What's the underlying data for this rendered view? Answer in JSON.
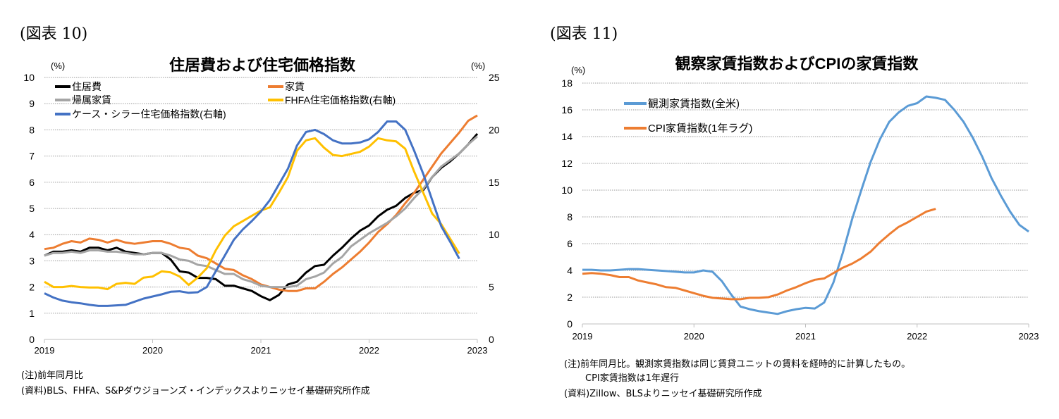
{
  "figures": [
    {
      "label": "(図表 10)"
    },
    {
      "label": "(図表 11)"
    }
  ],
  "notes_left": {
    "note": "(注)前年同月比",
    "source": "(資料)BLS、FHFA、S&Pダウジョーンズ・インデックスよりニッセイ基礎研究所作成"
  },
  "notes_right": {
    "note": "(注)前年同月比。観測家賃指数は同じ賃貸ユニットの賃料を経時的に計算したもの。",
    "note2": "CPI家賃指数は1年遅行",
    "source": "(資料)Zillow、BLSよりニッセイ基礎研究所作成"
  },
  "chart_data": [
    {
      "type": "line",
      "title": "住居費および住宅価格指数",
      "ylabel": "(%)",
      "y2label": "(%)",
      "x_start": "2019-01",
      "x_tick_labels": [
        "2019",
        "2020",
        "2021",
        "2022",
        "2023"
      ],
      "ylim": [
        0,
        10
      ],
      "y_ticks": [
        0,
        1,
        2,
        3,
        4,
        5,
        6,
        7,
        8,
        9,
        10
      ],
      "y2lim": [
        0,
        25
      ],
      "y2_ticks": [
        0,
        5,
        10,
        15,
        20,
        25
      ],
      "grid": true,
      "legend": "top-left",
      "series": [
        {
          "name": "住居費",
          "axis": "left",
          "color": "#000000",
          "values": [
            3.2,
            3.35,
            3.35,
            3.4,
            3.35,
            3.5,
            3.5,
            3.4,
            3.5,
            3.35,
            3.3,
            3.25,
            3.3,
            3.3,
            3.05,
            2.6,
            2.55,
            2.35,
            2.35,
            2.3,
            2.05,
            2.05,
            1.95,
            1.85,
            1.65,
            1.5,
            1.7,
            2.1,
            2.2,
            2.55,
            2.8,
            2.85,
            3.2,
            3.5,
            3.85,
            4.15,
            4.35,
            4.7,
            4.95,
            5.1,
            5.4,
            5.6,
            5.7,
            6.2,
            6.55,
            6.8,
            7.1,
            7.45,
            7.85
          ]
        },
        {
          "name": "家賃",
          "axis": "left",
          "color": "#ED7D31",
          "values": [
            3.45,
            3.5,
            3.65,
            3.75,
            3.7,
            3.85,
            3.8,
            3.7,
            3.8,
            3.7,
            3.65,
            3.7,
            3.75,
            3.75,
            3.65,
            3.5,
            3.45,
            3.2,
            3.1,
            2.9,
            2.7,
            2.65,
            2.45,
            2.3,
            2.1,
            2.0,
            1.9,
            1.85,
            1.85,
            1.95,
            1.95,
            2.2,
            2.5,
            2.75,
            3.05,
            3.35,
            3.7,
            4.1,
            4.4,
            4.75,
            5.2,
            5.6,
            6.1,
            6.6,
            7.1,
            7.5,
            7.9,
            8.35,
            8.55
          ]
        },
        {
          "name": "帰属家賃",
          "axis": "left",
          "color": "#A5A5A5",
          "values": [
            3.2,
            3.3,
            3.3,
            3.35,
            3.3,
            3.4,
            3.4,
            3.35,
            3.35,
            3.3,
            3.25,
            3.25,
            3.3,
            3.3,
            3.2,
            3.05,
            3.0,
            2.85,
            2.8,
            2.65,
            2.5,
            2.5,
            2.3,
            2.2,
            2.05,
            2.0,
            2.0,
            2.0,
            2.05,
            2.3,
            2.4,
            2.55,
            2.9,
            3.15,
            3.55,
            3.8,
            4.05,
            4.25,
            4.45,
            4.7,
            5.0,
            5.4,
            5.75,
            6.2,
            6.6,
            6.85,
            7.1,
            7.45,
            7.75
          ]
        },
        {
          "name": "FHFA住宅価格指数(右軸)",
          "axis": "right",
          "color": "#FFC000",
          "values": [
            5.5,
            5.0,
            5.0,
            5.1,
            5.0,
            4.95,
            4.95,
            4.8,
            5.3,
            5.4,
            5.3,
            5.9,
            6.0,
            6.5,
            6.4,
            6.0,
            5.2,
            5.9,
            6.8,
            8.5,
            9.9,
            10.8,
            11.3,
            11.8,
            12.3,
            12.6,
            14.0,
            15.5,
            18.0,
            19.0,
            19.2,
            18.3,
            17.6,
            17.5,
            17.7,
            17.9,
            18.4,
            19.2,
            19.0,
            18.9,
            18.2,
            16.0,
            14.0,
            12.0,
            11.0,
            9.6,
            8.2
          ]
        },
        {
          "name": "ケース・シラー住宅価格指数(右軸)",
          "axis": "right",
          "color": "#4472C4",
          "values": [
            4.4,
            4.0,
            3.7,
            3.55,
            3.45,
            3.3,
            3.2,
            3.2,
            3.25,
            3.3,
            3.6,
            3.9,
            4.1,
            4.3,
            4.55,
            4.6,
            4.45,
            4.5,
            5.0,
            6.5,
            8.0,
            9.5,
            10.5,
            11.3,
            12.2,
            13.3,
            14.8,
            16.3,
            18.5,
            19.8,
            20.0,
            19.6,
            19.0,
            18.7,
            18.7,
            18.8,
            19.1,
            19.8,
            20.8,
            20.8,
            20.0,
            18.0,
            15.8,
            13.3,
            10.8,
            9.3,
            7.7
          ]
        }
      ]
    },
    {
      "type": "line",
      "title": "観察家賃指数およびCPIの家賃指数",
      "ylabel": "(%)",
      "x_start": "2019-01",
      "x_tick_labels": [
        "2019",
        "2020",
        "2021",
        "2022",
        "2023"
      ],
      "ylim": [
        0,
        18
      ],
      "y_ticks": [
        0,
        2,
        4,
        6,
        8,
        10,
        12,
        14,
        16,
        18
      ],
      "grid": true,
      "legend": "top-left",
      "series": [
        {
          "name": "観測家賃指数(全米)",
          "axis": "left",
          "color": "#5B9BD5",
          "values": [
            4.05,
            4.05,
            4.0,
            4.0,
            4.05,
            4.1,
            4.1,
            4.05,
            4.0,
            3.95,
            3.9,
            3.85,
            3.85,
            4.0,
            3.9,
            3.2,
            2.2,
            1.3,
            1.1,
            0.95,
            0.85,
            0.75,
            0.95,
            1.1,
            1.2,
            1.15,
            1.6,
            3.1,
            5.3,
            7.8,
            10.0,
            12.1,
            13.8,
            15.1,
            15.8,
            16.3,
            16.5,
            17.0,
            16.9,
            16.75,
            16.0,
            15.1,
            13.9,
            12.5,
            10.9,
            9.6,
            8.4,
            7.4,
            6.9
          ]
        },
        {
          "name": "CPI家賃指数(1年ラグ)",
          "axis": "left",
          "color": "#ED7D31",
          "values": [
            3.75,
            3.8,
            3.75,
            3.65,
            3.5,
            3.5,
            3.25,
            3.1,
            2.95,
            2.75,
            2.7,
            2.5,
            2.3,
            2.1,
            1.95,
            1.9,
            1.85,
            1.85,
            1.95,
            1.95,
            2.0,
            2.2,
            2.5,
            2.75,
            3.05,
            3.3,
            3.4,
            3.8,
            4.2,
            4.5,
            4.9,
            5.4,
            6.1,
            6.7,
            7.25,
            7.6,
            8.0,
            8.4,
            8.6
          ]
        }
      ]
    }
  ]
}
